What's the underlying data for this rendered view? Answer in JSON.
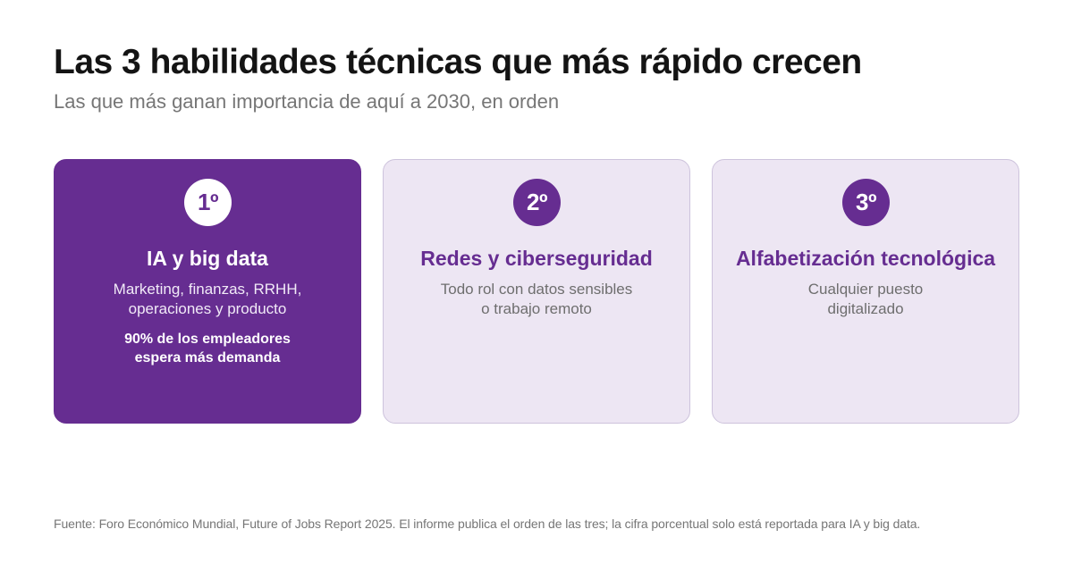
{
  "header": {
    "title": "Las 3 habilidades técnicas que más rápido crecen",
    "subtitle": "Las que más ganan importancia de aquí a 2030, en orden"
  },
  "cards": [
    {
      "rank": "1º",
      "title": "IA y big data",
      "description": [
        "Marketing, finanzas, RRHH,",
        "operaciones y producto"
      ],
      "stat": [
        "90% de los empleadores",
        "espera más demanda"
      ]
    },
    {
      "rank": "2º",
      "title": "Redes y ciberseguridad",
      "description": [
        "Todo rol con datos sensibles",
        "o trabajo remoto"
      ]
    },
    {
      "rank": "3º",
      "title": "Alfabetización tecnológica",
      "description": [
        "Cualquier puesto",
        "digitalizado"
      ]
    }
  ],
  "footer": {
    "source": "Fuente: Foro Económico Mundial, Future of Jobs Report 2025. El informe publica el orden de las tres; la cifra porcentual solo está reportada para IA y big data."
  },
  "colors": {
    "accent": "#662d91",
    "card_secondary_bg": "#ede6f3",
    "card_secondary_border": "#cdc3dc",
    "muted_text": "#767676"
  }
}
